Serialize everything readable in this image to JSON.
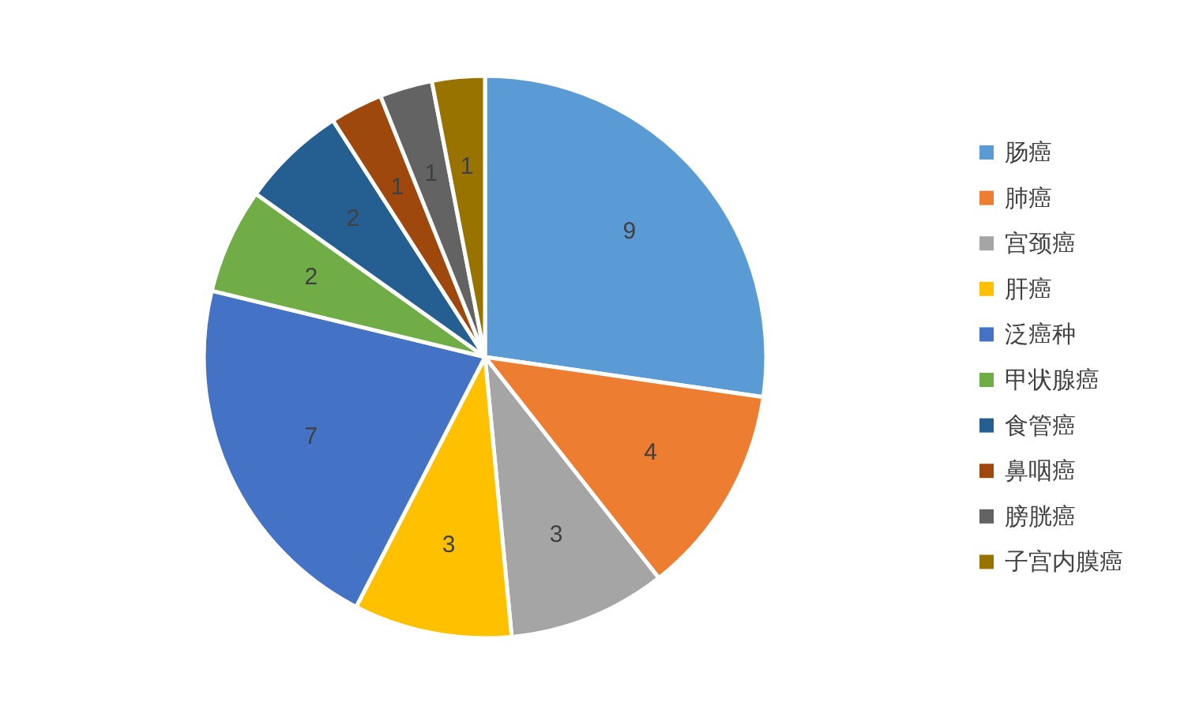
{
  "chart_data": {
    "type": "pie",
    "categories": [
      "肠癌",
      "肺癌",
      "宫颈癌",
      "肝癌",
      "泛癌种",
      "甲状腺癌",
      "食管癌",
      "鼻咽癌",
      "膀胱癌",
      "子宫内膜癌"
    ],
    "values": [
      9,
      4,
      3,
      3,
      7,
      2,
      2,
      1,
      1,
      1
    ],
    "colors": [
      "#5b9bd5",
      "#ed7d31",
      "#a5a5a5",
      "#ffc000",
      "#4472c4",
      "#70ad47",
      "#255e91",
      "#9e480e",
      "#636363",
      "#997300"
    ],
    "data_labels": true,
    "legend": "right"
  }
}
